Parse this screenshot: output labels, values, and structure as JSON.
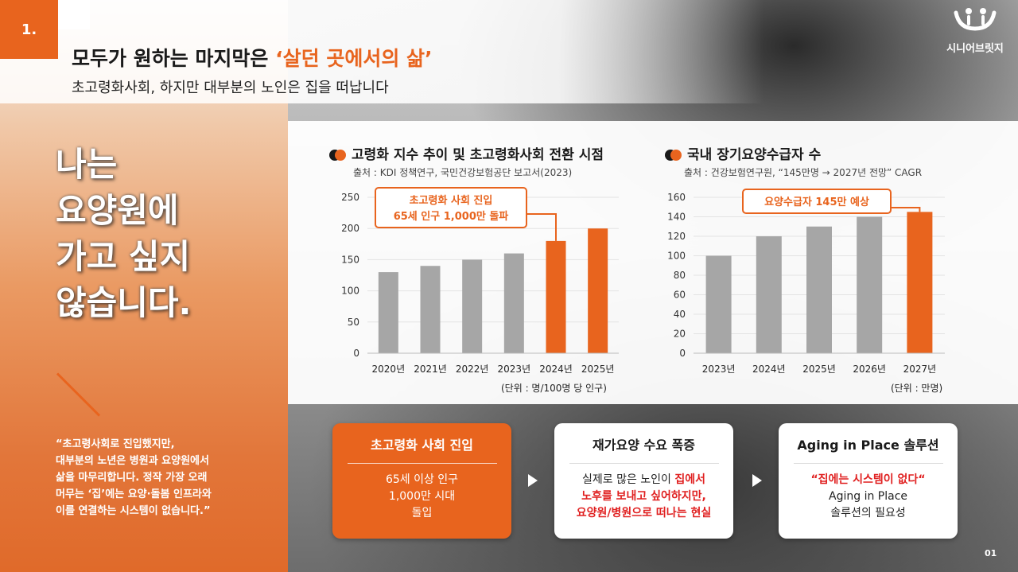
{
  "section_number": "1.",
  "title_prefix": "모두가 원하는 마지막은 ",
  "title_highlight": "‘살던 곳에서의 삶’",
  "subtitle": "초고령화사회, 하지만 대부분의 노인은 집을 떠납니다",
  "logo_text": "시니어브릿지",
  "big_text": [
    "나는",
    "요양원에",
    "가고 싶지",
    "않습니다."
  ],
  "quote": [
    "“초고령사회로 진입했지만,",
    "대부분의 노년은 병원과 요양원에서",
    "삶을 마무리합니다. 정작 가장 오래",
    "머무는 ‘집’에는 요양·돌봄 인프라와",
    "이를 연결하는 시스템이 없습니다.”"
  ],
  "chart_data": [
    {
      "type": "bar",
      "title": "고령화 지수 추이 및 초고령화사회 전환 시점",
      "source": "출처 : KDI 정책연구, 국민건강보험공단 보고서(2023)",
      "categories": [
        "2020년",
        "2021년",
        "2022년",
        "2023년",
        "2024년",
        "2025년"
      ],
      "values": [
        130,
        140,
        150,
        160,
        180,
        200
      ],
      "highlight": [
        false,
        false,
        false,
        false,
        true,
        true
      ],
      "ylim": [
        0,
        250
      ],
      "yticks": [
        0,
        50,
        100,
        150,
        200,
        250
      ],
      "unit": "(단위 : 명/100명 당 인구)",
      "callout": [
        "초고령화 사회 진입",
        "65세 인구 1,000만 돌파"
      ],
      "colors": {
        "base": "#a6a6a6",
        "highlight": "#e8641e"
      }
    },
    {
      "type": "bar",
      "title": "국내 장기요양수급자 수",
      "source": "출처 : 건강보험연구원, “145만명 → 2027년 전망” CAGR",
      "categories": [
        "2023년",
        "2024년",
        "2025년",
        "2026년",
        "2027년"
      ],
      "values": [
        100,
        120,
        130,
        140,
        145
      ],
      "highlight": [
        false,
        false,
        false,
        false,
        true
      ],
      "ylim": [
        0,
        160
      ],
      "yticks": [
        0,
        20,
        40,
        60,
        80,
        100,
        120,
        140,
        160
      ],
      "unit": "(단위 : 만명)",
      "callout": [
        "요양수급자 145만 예상"
      ],
      "colors": {
        "base": "#a6a6a6",
        "highlight": "#e8641e"
      }
    }
  ],
  "cards": [
    {
      "head": "초고령화 사회 진입",
      "lines": [
        "65세 이상 인구",
        "1,000만 시대",
        "돌입"
      ]
    },
    {
      "head": "재가요양 수요 폭증",
      "lines": [
        "실제로 많은 노인이 ",
        "집에서",
        "노후를 보내고 싶어하지만,",
        "요양원/병원으로 떠나는 현실"
      ]
    },
    {
      "head": "Aging in Place 솔루션",
      "lines": [
        "“집에는 시스템이 없다“",
        "Aging in Place",
        "솔루션의 필요성"
      ]
    }
  ],
  "page_number": "01"
}
